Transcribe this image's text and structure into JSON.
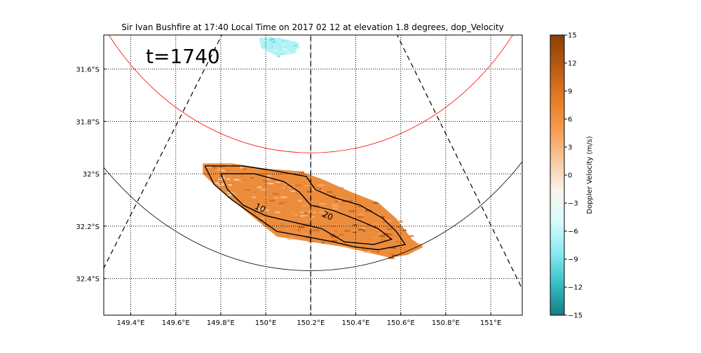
{
  "chart_data": {
    "type": "heatmap",
    "title": "Sir Ivan Bushfire at 17:40 Local Time on 2017 02 12 at elevation 1.8 degrees, dop_Velocity",
    "annotation": "t=1740",
    "xlabel": "",
    "ylabel": "",
    "xlim": [
      149.28,
      151.14
    ],
    "ylim": [
      -32.54,
      -31.47
    ],
    "x_ticks": [
      {
        "value": 149.4,
        "label": "149.4°E"
      },
      {
        "value": 149.6,
        "label": "149.6°E"
      },
      {
        "value": 149.8,
        "label": "149.8°E"
      },
      {
        "value": 150.0,
        "label": "150°E"
      },
      {
        "value": 150.2,
        "label": "150.2°E"
      },
      {
        "value": 150.4,
        "label": "150.4°E"
      },
      {
        "value": 150.6,
        "label": "150.6°E"
      },
      {
        "value": 150.8,
        "label": "150.8°E"
      },
      {
        "value": 151.0,
        "label": "151°E"
      }
    ],
    "y_ticks": [
      {
        "value": -31.6,
        "label": "31.6°S"
      },
      {
        "value": -31.8,
        "label": "31.8°S"
      },
      {
        "value": -32.0,
        "label": "32°S"
      },
      {
        "value": -32.2,
        "label": "32.2°S"
      },
      {
        "value": -32.4,
        "label": "32.4°S"
      }
    ],
    "grid": true,
    "colorbar": {
      "label": "Doppler Velocity (m/s)",
      "range": [
        -15,
        15
      ],
      "ticks": [
        {
          "value": 15,
          "label": "15"
        },
        {
          "value": 12,
          "label": "12"
        },
        {
          "value": 9,
          "label": "9"
        },
        {
          "value": 6,
          "label": "6"
        },
        {
          "value": 3,
          "label": "3"
        },
        {
          "value": 0,
          "label": "0"
        },
        {
          "value": -3,
          "label": "−3"
        },
        {
          "value": -6,
          "label": "−6"
        },
        {
          "value": -9,
          "label": "−9"
        },
        {
          "value": -12,
          "label": "−12"
        },
        {
          "value": -15,
          "label": "−15"
        }
      ],
      "colors": [
        "#137d85",
        "#36bec6",
        "#88eaf0",
        "#d8fbfc",
        "#fbf5ec",
        "#f7c69c",
        "#f59a4e",
        "#e57a22",
        "#b85a12",
        "#8a3f08"
      ]
    },
    "range_rings": [
      {
        "color": "#ff0000",
        "center": [
          150.2,
          -30.8
        ],
        "radius_deg": 1.12
      },
      {
        "color": "#000000",
        "center": [
          150.2,
          -31.1
        ],
        "radius_deg": 1.27
      }
    ],
    "radial_lines": [
      {
        "from": [
          150.2,
          -30.8
        ],
        "to": [
          149.28,
          -32.36
        ]
      },
      {
        "from": [
          150.2,
          -30.8
        ],
        "to": [
          151.14,
          -32.44
        ]
      },
      {
        "from": [
          150.2,
          -30.8
        ],
        "to": [
          150.2,
          -32.54
        ]
      }
    ],
    "velocity_region": {
      "outline": [
        [
          149.72,
          -31.96
        ],
        [
          149.85,
          -31.96
        ],
        [
          150.0,
          -31.98
        ],
        [
          150.15,
          -31.99
        ],
        [
          150.25,
          -32.02
        ],
        [
          150.38,
          -32.07
        ],
        [
          150.5,
          -32.11
        ],
        [
          150.58,
          -32.17
        ],
        [
          150.65,
          -32.25
        ],
        [
          150.7,
          -32.28
        ],
        [
          150.63,
          -32.31
        ],
        [
          150.55,
          -32.32
        ],
        [
          150.45,
          -32.3
        ],
        [
          150.35,
          -32.28
        ],
        [
          150.2,
          -32.26
        ],
        [
          150.05,
          -32.24
        ],
        [
          149.95,
          -32.17
        ],
        [
          149.85,
          -32.1
        ],
        [
          149.78,
          -32.05
        ],
        [
          149.72,
          -32.0
        ]
      ],
      "value_mean": 7
    },
    "contours": [
      {
        "label": "10",
        "label_position": [
          149.97,
          -32.14
        ],
        "path": [
          [
            149.73,
            -31.97
          ],
          [
            149.9,
            -31.97
          ],
          [
            150.05,
            -31.99
          ],
          [
            150.18,
            -32.01
          ],
          [
            150.22,
            -32.06
          ],
          [
            150.3,
            -32.09
          ],
          [
            150.42,
            -32.12
          ],
          [
            150.52,
            -32.17
          ],
          [
            150.58,
            -32.22
          ],
          [
            150.62,
            -32.27
          ],
          [
            150.5,
            -32.29
          ],
          [
            150.4,
            -32.28
          ],
          [
            150.3,
            -32.26
          ],
          [
            150.18,
            -32.24
          ],
          [
            150.05,
            -32.22
          ],
          [
            149.95,
            -32.16
          ],
          [
            149.85,
            -32.1
          ],
          [
            149.77,
            -32.04
          ],
          [
            149.73,
            -31.97
          ]
        ]
      },
      {
        "label": "20",
        "label_position": [
          150.27,
          -32.17
        ],
        "path": [
          [
            149.8,
            -32.0
          ],
          [
            149.95,
            -32.0
          ],
          [
            150.08,
            -32.03
          ],
          [
            150.15,
            -32.07
          ],
          [
            150.2,
            -32.12
          ],
          [
            150.3,
            -32.14
          ],
          [
            150.42,
            -32.18
          ],
          [
            150.5,
            -32.21
          ],
          [
            150.56,
            -32.25
          ],
          [
            150.48,
            -32.27
          ],
          [
            150.35,
            -32.26
          ],
          [
            150.25,
            -32.21
          ],
          [
            150.15,
            -32.19
          ],
          [
            150.0,
            -32.16
          ],
          [
            149.9,
            -32.12
          ],
          [
            149.83,
            -32.06
          ],
          [
            149.8,
            -32.0
          ]
        ]
      }
    ],
    "echo_patch": {
      "value_mean": -7,
      "points": [
        [
          149.97,
          -31.48
        ],
        [
          150.06,
          -31.48
        ],
        [
          150.15,
          -31.5
        ],
        [
          150.13,
          -31.54
        ],
        [
          150.05,
          -31.55
        ],
        [
          149.98,
          -31.52
        ]
      ]
    }
  }
}
